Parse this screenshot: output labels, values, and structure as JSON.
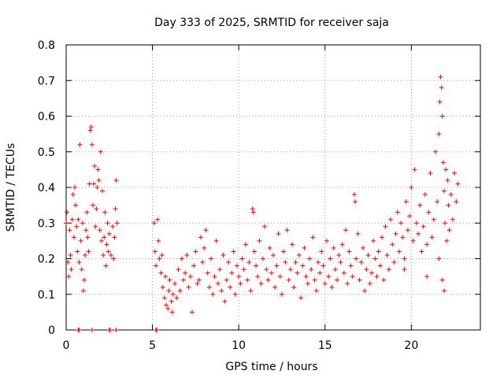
{
  "chart_data": {
    "type": "scatter",
    "title": "Day 333 of 2025, SRMTID for receiver saja",
    "xlabel": "GPS time / hours",
    "ylabel": "SRMTID / TECUs",
    "xlim": [
      0,
      24
    ],
    "ylim": [
      0,
      0.8
    ],
    "xticks": [
      0,
      5,
      10,
      15,
      20
    ],
    "xtick_labels": [
      "0",
      "5",
      "10",
      "15",
      "20"
    ],
    "yticks": [
      0,
      0.1,
      0.2,
      0.3,
      0.4,
      0.5,
      0.6,
      0.7,
      0.8
    ],
    "ytick_labels": [
      "0",
      "0.1",
      "0.2",
      "0.3",
      "0.4",
      "0.5",
      "0.6",
      "0.7",
      "0.8"
    ],
    "grid": true,
    "marker": "+",
    "series": [
      {
        "name": "SRMTID",
        "color": "#ff0000",
        "points": [
          [
            0.0,
            0.3
          ],
          [
            0.05,
            0.33
          ],
          [
            0.1,
            0.19
          ],
          [
            0.15,
            0.15
          ],
          [
            0.2,
            0.28
          ],
          [
            0.25,
            0.21
          ],
          [
            0.3,
            0.17
          ],
          [
            0.35,
            0.31
          ],
          [
            0.4,
            0.38
          ],
          [
            0.45,
            0.26
          ],
          [
            0.5,
            0.4
          ],
          [
            0.55,
            0.35
          ],
          [
            0.6,
            0.29
          ],
          [
            0.65,
            0.22
          ],
          [
            0.7,
            0.31
          ],
          [
            0.75,
            0.19
          ],
          [
            0.8,
            0.52
          ],
          [
            0.85,
            0.25
          ],
          [
            0.9,
            0.17
          ],
          [
            0.95,
            0.3
          ],
          [
            1.0,
            0.11
          ],
          [
            1.05,
            0.14
          ],
          [
            1.1,
            0.21
          ],
          [
            1.15,
            0.28
          ],
          [
            1.2,
            0.33
          ],
          [
            1.25,
            0.26
          ],
          [
            1.3,
            0.22
          ],
          [
            1.35,
            0.41
          ],
          [
            1.4,
            0.56
          ],
          [
            1.45,
            0.57
          ],
          [
            1.5,
            0.52
          ],
          [
            1.55,
            0.35
          ],
          [
            1.6,
            0.41
          ],
          [
            1.65,
            0.46
          ],
          [
            1.7,
            0.29
          ],
          [
            1.75,
            0.34
          ],
          [
            1.8,
            0.4
          ],
          [
            1.85,
            0.45
          ],
          [
            1.9,
            0.42
          ],
          [
            1.95,
            0.28
          ],
          [
            2.0,
            0.5
          ],
          [
            2.05,
            0.25
          ],
          [
            2.1,
            0.39
          ],
          [
            2.15,
            0.21
          ],
          [
            2.2,
            0.26
          ],
          [
            2.25,
            0.33
          ],
          [
            2.3,
            0.18
          ],
          [
            2.35,
            0.24
          ],
          [
            2.4,
            0.3
          ],
          [
            2.45,
            0.22
          ],
          [
            2.5,
            0.27
          ],
          [
            2.6,
            0.21
          ],
          [
            2.7,
            0.29
          ],
          [
            2.75,
            0.2
          ],
          [
            2.8,
            0.26
          ],
          [
            2.85,
            0.34
          ],
          [
            2.9,
            0.42
          ],
          [
            2.95,
            0.3
          ],
          [
            0.7,
            0.0
          ],
          [
            0.75,
            0.0
          ],
          [
            1.5,
            0.0
          ],
          [
            2.5,
            0.0
          ],
          [
            2.55,
            0.0
          ],
          [
            2.9,
            0.0
          ],
          [
            5.2,
            0.0
          ],
          [
            5.25,
            0.0
          ],
          [
            5.1,
            0.3
          ],
          [
            5.15,
            0.22
          ],
          [
            5.2,
            0.18
          ],
          [
            5.3,
            0.31
          ],
          [
            5.35,
            0.25
          ],
          [
            5.4,
            0.2
          ],
          [
            5.5,
            0.16
          ],
          [
            5.55,
            0.21
          ],
          [
            5.6,
            0.12
          ],
          [
            5.7,
            0.09
          ],
          [
            5.75,
            0.15
          ],
          [
            5.8,
            0.07
          ],
          [
            5.9,
            0.06
          ],
          [
            5.95,
            0.11
          ],
          [
            6.0,
            0.14
          ],
          [
            6.1,
            0.08
          ],
          [
            6.15,
            0.05
          ],
          [
            6.2,
            0.1
          ],
          [
            6.3,
            0.13
          ],
          [
            6.4,
            0.09
          ],
          [
            6.5,
            0.17
          ],
          [
            6.6,
            0.11
          ],
          [
            6.7,
            0.2
          ],
          [
            6.8,
            0.14
          ],
          [
            6.9,
            0.16
          ],
          [
            7.0,
            0.21
          ],
          [
            7.1,
            0.12
          ],
          [
            7.2,
            0.15
          ],
          [
            7.3,
            0.05
          ],
          [
            7.4,
            0.18
          ],
          [
            7.5,
            0.22
          ],
          [
            7.6,
            0.13
          ],
          [
            7.7,
            0.14
          ],
          [
            7.8,
            0.26
          ],
          [
            7.9,
            0.19
          ],
          [
            8.0,
            0.23
          ],
          [
            8.1,
            0.28
          ],
          [
            8.2,
            0.16
          ],
          [
            8.3,
            0.12
          ],
          [
            8.4,
            0.2
          ],
          [
            8.5,
            0.1
          ],
          [
            8.6,
            0.15
          ],
          [
            8.7,
            0.25
          ],
          [
            8.8,
            0.13
          ],
          [
            8.9,
            0.17
          ],
          [
            9.0,
            0.11
          ],
          [
            9.1,
            0.21
          ],
          [
            9.2,
            0.08
          ],
          [
            9.3,
            0.14
          ],
          [
            9.4,
            0.19
          ],
          [
            9.5,
            0.12
          ],
          [
            9.6,
            0.16
          ],
          [
            9.7,
            0.22
          ],
          [
            9.8,
            0.1
          ],
          [
            9.9,
            0.18
          ],
          [
            10.0,
            0.15
          ],
          [
            10.1,
            0.13
          ],
          [
            10.2,
            0.2
          ],
          [
            10.3,
            0.17
          ],
          [
            10.4,
            0.24
          ],
          [
            10.5,
            0.14
          ],
          [
            10.6,
            0.19
          ],
          [
            10.7,
            0.11
          ],
          [
            10.8,
            0.34
          ],
          [
            10.85,
            0.33
          ],
          [
            10.9,
            0.22
          ],
          [
            11.0,
            0.18
          ],
          [
            11.1,
            0.15
          ],
          [
            11.2,
            0.25
          ],
          [
            11.3,
            0.13
          ],
          [
            11.4,
            0.2
          ],
          [
            11.5,
            0.29
          ],
          [
            11.6,
            0.17
          ],
          [
            11.7,
            0.14
          ],
          [
            11.8,
            0.23
          ],
          [
            11.9,
            0.16
          ],
          [
            12.0,
            0.21
          ],
          [
            12.1,
            0.12
          ],
          [
            12.2,
            0.18
          ],
          [
            12.3,
            0.27
          ],
          [
            12.4,
            0.15
          ],
          [
            12.5,
            0.1
          ],
          [
            12.6,
            0.22
          ],
          [
            12.7,
            0.19
          ],
          [
            12.8,
            0.28
          ],
          [
            12.9,
            0.14
          ],
          [
            13.0,
            0.17
          ],
          [
            13.1,
            0.24
          ],
          [
            13.2,
            0.12
          ],
          [
            13.3,
            0.19
          ],
          [
            13.4,
            0.16
          ],
          [
            13.5,
            0.21
          ],
          [
            13.6,
            0.09
          ],
          [
            13.7,
            0.18
          ],
          [
            13.8,
            0.23
          ],
          [
            13.9,
            0.15
          ],
          [
            14.0,
            0.13
          ],
          [
            14.1,
            0.2
          ],
          [
            14.2,
            0.17
          ],
          [
            14.3,
            0.26
          ],
          [
            14.4,
            0.14
          ],
          [
            14.5,
            0.11
          ],
          [
            14.6,
            0.19
          ],
          [
            14.7,
            0.16
          ],
          [
            14.8,
            0.22
          ],
          [
            14.9,
            0.18
          ],
          [
            15.0,
            0.13
          ],
          [
            15.1,
            0.25
          ],
          [
            15.2,
            0.15
          ],
          [
            15.3,
            0.2
          ],
          [
            15.4,
            0.12
          ],
          [
            15.5,
            0.23
          ],
          [
            15.6,
            0.17
          ],
          [
            15.7,
            0.14
          ],
          [
            15.8,
            0.21
          ],
          [
            15.9,
            0.19
          ],
          [
            16.0,
            0.24
          ],
          [
            16.1,
            0.16
          ],
          [
            16.2,
            0.28
          ],
          [
            16.3,
            0.13
          ],
          [
            16.4,
            0.22
          ],
          [
            16.5,
            0.18
          ],
          [
            16.6,
            0.15
          ],
          [
            16.7,
            0.38
          ],
          [
            16.75,
            0.36
          ],
          [
            16.8,
            0.2
          ],
          [
            16.9,
            0.27
          ],
          [
            17.0,
            0.14
          ],
          [
            17.1,
            0.19
          ],
          [
            17.2,
            0.23
          ],
          [
            17.3,
            0.11
          ],
          [
            17.4,
            0.17
          ],
          [
            17.5,
            0.21
          ],
          [
            17.6,
            0.13
          ],
          [
            17.7,
            0.16
          ],
          [
            17.8,
            0.25
          ],
          [
            17.9,
            0.2
          ],
          [
            18.0,
            0.15
          ],
          [
            18.1,
            0.22
          ],
          [
            18.2,
            0.18
          ],
          [
            18.3,
            0.26
          ],
          [
            18.4,
            0.14
          ],
          [
            18.5,
            0.29
          ],
          [
            18.6,
            0.21
          ],
          [
            18.7,
            0.17
          ],
          [
            18.8,
            0.31
          ],
          [
            18.9,
            0.24
          ],
          [
            19.0,
            0.19
          ],
          [
            19.1,
            0.27
          ],
          [
            19.2,
            0.33
          ],
          [
            19.3,
            0.22
          ],
          [
            19.4,
            0.3
          ],
          [
            19.5,
            0.26
          ],
          [
            19.6,
            0.2
          ],
          [
            19.7,
            0.36
          ],
          [
            19.8,
            0.28
          ],
          [
            19.9,
            0.32
          ],
          [
            20.0,
            0.4
          ],
          [
            20.1,
            0.25
          ],
          [
            20.2,
            0.45
          ],
          [
            20.3,
            0.3
          ],
          [
            20.4,
            0.27
          ],
          [
            20.5,
            0.35
          ],
          [
            20.6,
            0.22
          ],
          [
            20.7,
            0.29
          ],
          [
            20.8,
            0.38
          ],
          [
            20.9,
            0.24
          ],
          [
            21.0,
            0.33
          ],
          [
            21.1,
            0.44
          ],
          [
            21.2,
            0.26
          ],
          [
            21.3,
            0.31
          ],
          [
            21.4,
            0.5
          ],
          [
            21.5,
            0.36
          ],
          [
            21.6,
            0.55
          ],
          [
            21.65,
            0.64
          ],
          [
            21.7,
            0.71
          ],
          [
            21.75,
            0.68
          ],
          [
            21.8,
            0.6
          ],
          [
            21.85,
            0.47
          ],
          [
            21.9,
            0.39
          ],
          [
            21.95,
            0.3
          ],
          [
            22.0,
            0.45
          ],
          [
            22.05,
            0.25
          ],
          [
            22.1,
            0.42
          ],
          [
            22.15,
            0.35
          ],
          [
            22.2,
            0.28
          ],
          [
            22.3,
            0.38
          ],
          [
            22.4,
            0.31
          ],
          [
            22.5,
            0.44
          ],
          [
            22.6,
            0.36
          ],
          [
            22.7,
            0.41
          ],
          [
            21.9,
            0.11
          ],
          [
            21.8,
            0.14
          ],
          [
            21.6,
            0.2
          ],
          [
            20.9,
            0.15
          ],
          [
            19.6,
            0.17
          ]
        ]
      }
    ]
  }
}
